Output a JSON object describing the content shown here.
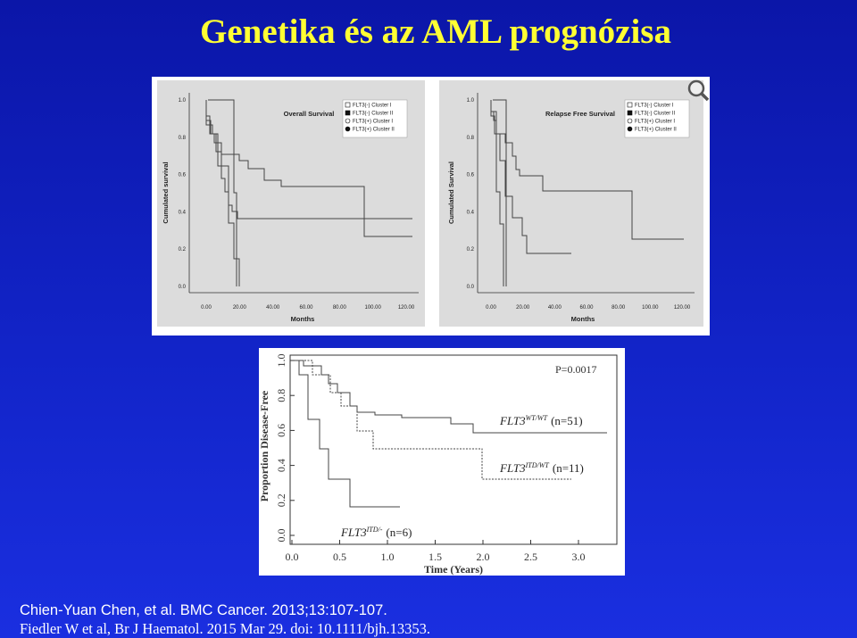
{
  "title": "Genetika és az AML prognózisa",
  "figure_top": {
    "panels": [
      {
        "title": "Overall Survival",
        "y_label": "Cumulated survival",
        "x_label": "Months",
        "yticks": [
          "0.0",
          "0.2",
          "0.4",
          "0.6",
          "0.8",
          "1.0"
        ],
        "xticks": [
          "0.00",
          "20.00",
          "40.00",
          "60.00",
          "80.00",
          "100.00",
          "120.00"
        ],
        "legend": [
          "FLT3(-) Cluster I",
          "FLT3(-) Cluster II",
          "FLT3(+) Cluster I",
          "FLT3(+) Cluster II"
        ]
      },
      {
        "title": "Relapse Free Survival",
        "y_label": "Cumulated Survival",
        "x_label": "Months",
        "yticks": [
          "0.0",
          "0.2",
          "0.4",
          "0.6",
          "0.8",
          "1.0"
        ],
        "xticks": [
          "0.00",
          "20.00",
          "40.00",
          "60.00",
          "80.00",
          "100.00",
          "120.00"
        ],
        "legend": [
          "FLT3(-) Cluster I",
          "FLT3(-) Cluster II",
          "FLT3(+) Cluster I",
          "FLT3(+) Cluster II"
        ]
      }
    ]
  },
  "figure_bottom": {
    "p_value": "P=0.0017",
    "y_label": "Proportion Disease-Free",
    "x_label": "Time (Years)",
    "yticks": [
      "0.0",
      "0.2",
      "0.4",
      "0.6",
      "0.8",
      "1.0"
    ],
    "xticks": [
      "0.0",
      "0.5",
      "1.0",
      "1.5",
      "2.0",
      "2.5",
      "3.0"
    ],
    "curve_labels": [
      {
        "gene": "FLT3",
        "genotype": "WT/WT",
        "n": "(n=51)"
      },
      {
        "gene": "FLT3",
        "genotype": "ITD/WT",
        "n": "(n=11)"
      },
      {
        "gene": "FLT3",
        "genotype": "ITD/-",
        "n": "(n=6)"
      }
    ]
  },
  "citations": [
    "Chien-Yuan Chen, et al. BMC Cancer. 2013;13:107-107.",
    "Fiedler W et al, Br J Haematol. 2015 Mar 29. doi: 10.1111/bjh.13353."
  ]
}
